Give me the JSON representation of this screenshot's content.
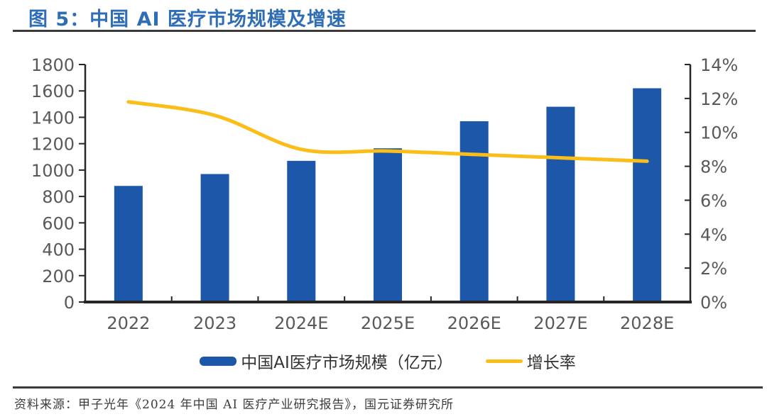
{
  "title": {
    "label": "图 5：中国 AI 医疗市场规模及增速"
  },
  "legend": {
    "bar_label": "中国AI医疗市场规模（亿元）",
    "line_label": "增长率"
  },
  "footer": {
    "source": "资料来源：甲子光年《2024 年中国 AI 医疗产业研究报告》，国元证券研究所"
  },
  "colors": {
    "bar": "#1D57A9",
    "line": "#FBBE18",
    "axis": "#262626",
    "tick_label": "#595959",
    "title": "#2F6EB6",
    "rule": "#3A3A3A",
    "legend_text": "#333333",
    "footer_text": "#3C3C3C"
  },
  "chart_data": {
    "type": "bar",
    "subtype": "bar+line combo, dual axis",
    "title": "中国 AI 医疗市场规模及增速",
    "categories": [
      "2022",
      "2023",
      "2024E",
      "2025E",
      "2026E",
      "2027E",
      "2028E"
    ],
    "series": [
      {
        "name": "中国AI医疗市场规模（亿元）",
        "type": "bar",
        "axis": "left",
        "values": [
          880,
          970,
          1070,
          1165,
          1370,
          1480,
          1620
        ]
      },
      {
        "name": "增长率",
        "type": "line",
        "axis": "right",
        "values_pct": [
          11.8,
          11.0,
          9.0,
          8.9,
          8.7,
          8.5,
          8.3
        ]
      }
    ],
    "left_axis": {
      "min": 0,
      "max": 1800,
      "step": 200,
      "ticks": [
        "0",
        "200",
        "400",
        "600",
        "800",
        "1000",
        "1200",
        "1400",
        "1600",
        "1800"
      ]
    },
    "right_axis": {
      "min": 0,
      "max": 14,
      "step": 2,
      "ticks": [
        "0%",
        "2%",
        "4%",
        "6%",
        "8%",
        "10%",
        "12%",
        "14%"
      ]
    },
    "grid": false,
    "legend_position": "bottom"
  }
}
